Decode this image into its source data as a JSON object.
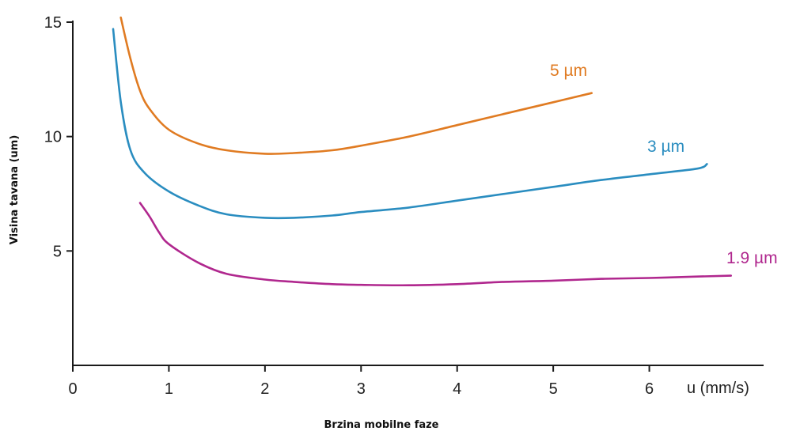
{
  "chart_data": {
    "type": "line",
    "title": "",
    "xlabel": "u (mm/s)",
    "ylabel": "Visina tavana (um)",
    "xlabel_secondary": "Brzina mobilne faze",
    "xlim": [
      0,
      7
    ],
    "ylim": [
      0,
      15
    ],
    "x_ticks": [
      0,
      1,
      2,
      3,
      4,
      5,
      6
    ],
    "y_ticks": [
      5,
      10,
      15
    ],
    "grid": false,
    "series": [
      {
        "name": "5 µm",
        "color": "#e07b22",
        "x": [
          0.5,
          0.6,
          0.7,
          0.8,
          1.0,
          1.3,
          1.6,
          2.0,
          2.3,
          2.7,
          3.0,
          3.5,
          4.0,
          4.5,
          5.0,
          5.4
        ],
        "y": [
          15.2,
          13.4,
          12.0,
          11.2,
          10.3,
          9.7,
          9.4,
          9.25,
          9.28,
          9.4,
          9.6,
          10.0,
          10.5,
          11.0,
          11.5,
          11.9
        ]
      },
      {
        "name": "3 µm",
        "color": "#2a8dc0",
        "x": [
          0.42,
          0.5,
          0.6,
          0.75,
          1.0,
          1.3,
          1.6,
          2.0,
          2.3,
          2.7,
          3.0,
          3.5,
          4.0,
          4.5,
          5.0,
          5.5,
          6.0,
          6.5,
          6.6
        ],
        "y": [
          14.7,
          11.5,
          9.4,
          8.4,
          7.6,
          7.0,
          6.6,
          6.45,
          6.45,
          6.55,
          6.7,
          6.9,
          7.2,
          7.5,
          7.8,
          8.1,
          8.35,
          8.6,
          8.8
        ]
      },
      {
        "name": "1.9 µm",
        "color": "#b0278e",
        "x": [
          0.7,
          0.8,
          0.9,
          1.0,
          1.3,
          1.6,
          2.0,
          2.3,
          2.7,
          3.0,
          3.5,
          4.0,
          4.5,
          5.0,
          5.5,
          6.0,
          6.5,
          6.85
        ],
        "y": [
          7.1,
          6.5,
          5.8,
          5.3,
          4.5,
          4.0,
          3.75,
          3.65,
          3.55,
          3.52,
          3.5,
          3.55,
          3.65,
          3.7,
          3.78,
          3.82,
          3.88,
          3.92
        ]
      }
    ]
  }
}
